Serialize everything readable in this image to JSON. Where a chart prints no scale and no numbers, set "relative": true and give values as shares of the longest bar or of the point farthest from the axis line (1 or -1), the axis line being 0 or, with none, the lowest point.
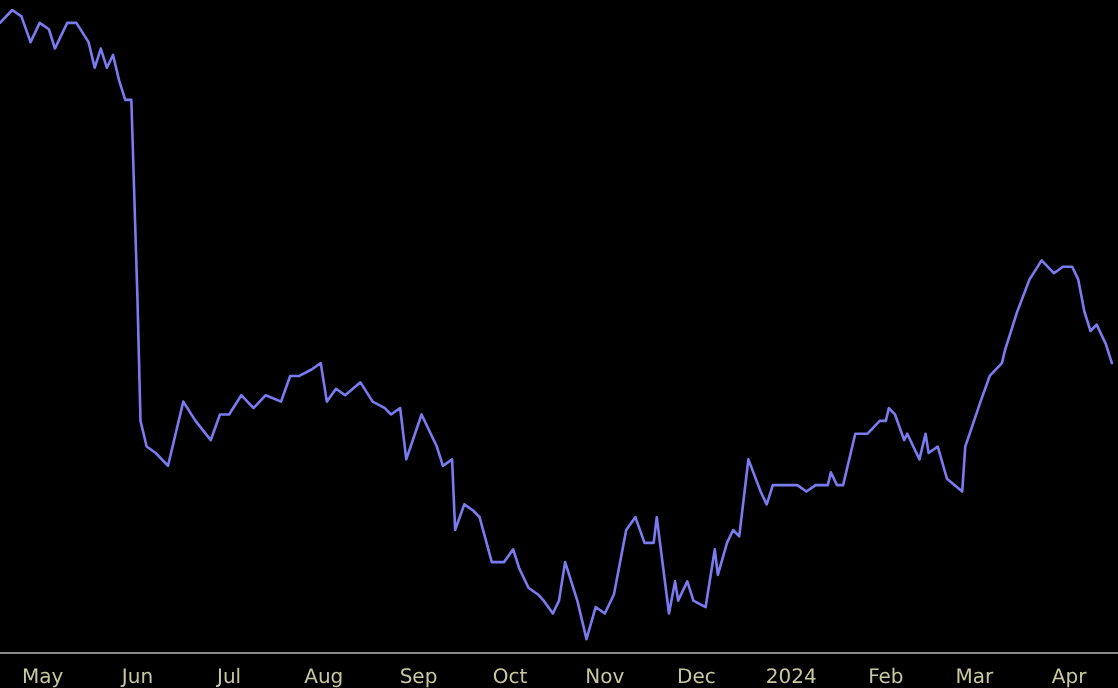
{
  "chart_data": {
    "type": "line",
    "relative": true,
    "grid": false,
    "marker": "none",
    "line_style": "solid",
    "xlim": [
      "2023-04-17",
      "2024-04-17"
    ],
    "xticks": [
      {
        "value": "2023-05-01",
        "label": "May"
      },
      {
        "value": "2023-06-01",
        "label": "Jun"
      },
      {
        "value": "2023-07-01",
        "label": "Jul"
      },
      {
        "value": "2023-08-01",
        "label": "Aug"
      },
      {
        "value": "2023-09-01",
        "label": "Sep"
      },
      {
        "value": "2023-10-01",
        "label": "Oct"
      },
      {
        "value": "2023-11-01",
        "label": "Nov"
      },
      {
        "value": "2023-12-01",
        "label": "Dec"
      },
      {
        "value": "2024-01-01",
        "label": "2024"
      },
      {
        "value": "2024-02-01",
        "label": "Feb"
      },
      {
        "value": "2024-03-01",
        "label": "Mar"
      },
      {
        "value": "2024-04-01",
        "label": "Apr"
      }
    ],
    "x": [
      "2023-04-17",
      "2023-04-21",
      "2023-04-24",
      "2023-04-27",
      "2023-04-30",
      "2023-05-03",
      "2023-05-05",
      "2023-05-09",
      "2023-05-12",
      "2023-05-16",
      "2023-05-18",
      "2023-05-20",
      "2023-05-22",
      "2023-05-24",
      "2023-05-26",
      "2023-05-28",
      "2023-05-30",
      "2023-06-01",
      "2023-06-02",
      "2023-06-04",
      "2023-06-07",
      "2023-06-11",
      "2023-06-14",
      "2023-06-16",
      "2023-06-20",
      "2023-06-25",
      "2023-06-28",
      "2023-07-01",
      "2023-07-05",
      "2023-07-09",
      "2023-07-13",
      "2023-07-18",
      "2023-07-21",
      "2023-07-24",
      "2023-07-28",
      "2023-07-31",
      "2023-08-02",
      "2023-08-05",
      "2023-08-08",
      "2023-08-13",
      "2023-08-17",
      "2023-08-21",
      "2023-08-23",
      "2023-08-26",
      "2023-08-28",
      "2023-09-02",
      "2023-09-07",
      "2023-09-09",
      "2023-09-12",
      "2023-09-13",
      "2023-09-16",
      "2023-09-19",
      "2023-09-21",
      "2023-09-25",
      "2023-09-29",
      "2023-10-02",
      "2023-10-04",
      "2023-10-07",
      "2023-10-10",
      "2023-10-12",
      "2023-10-15",
      "2023-10-17",
      "2023-10-19",
      "2023-10-23",
      "2023-10-26",
      "2023-10-29",
      "2023-11-01",
      "2023-11-04",
      "2023-11-08",
      "2023-11-11",
      "2023-11-14",
      "2023-11-17",
      "2023-11-18",
      "2023-11-22",
      "2023-11-24",
      "2023-11-25",
      "2023-11-28",
      "2023-11-30",
      "2023-12-04",
      "2023-12-07",
      "2023-12-08",
      "2023-12-11",
      "2023-12-13",
      "2023-12-15",
      "2023-12-18",
      "2023-12-22",
      "2023-12-24",
      "2023-12-26",
      "2023-12-30",
      "2024-01-03",
      "2024-01-06",
      "2024-01-09",
      "2024-01-13",
      "2024-01-14",
      "2024-01-16",
      "2024-01-18",
      "2024-01-22",
      "2024-01-26",
      "2024-01-30",
      "2024-02-01",
      "2024-02-02",
      "2024-02-04",
      "2024-02-07",
      "2024-02-08",
      "2024-02-12",
      "2024-02-14",
      "2024-02-15",
      "2024-02-18",
      "2024-02-21",
      "2024-02-26",
      "2024-02-27",
      "2024-03-03",
      "2024-03-06",
      "2024-03-10",
      "2024-03-11",
      "2024-03-15",
      "2024-03-19",
      "2024-03-23",
      "2024-03-27",
      "2024-03-30",
      "2024-04-02",
      "2024-04-04",
      "2024-04-06",
      "2024-04-08",
      "2024-04-10",
      "2024-04-13",
      "2024-04-15"
    ],
    "series": [
      {
        "color": "#7b7bf0",
        "values": [
          0.98,
          1.0,
          0.99,
          0.95,
          0.98,
          0.97,
          0.94,
          0.98,
          0.98,
          0.95,
          0.91,
          0.94,
          0.91,
          0.93,
          0.89,
          0.86,
          0.86,
          0.55,
          0.36,
          0.32,
          0.31,
          0.29,
          0.35,
          0.39,
          0.36,
          0.33,
          0.37,
          0.37,
          0.4,
          0.38,
          0.4,
          0.39,
          0.43,
          0.43,
          0.44,
          0.45,
          0.39,
          0.41,
          0.4,
          0.42,
          0.39,
          0.38,
          0.37,
          0.38,
          0.3,
          0.37,
          0.32,
          0.29,
          0.3,
          0.19,
          0.23,
          0.22,
          0.21,
          0.14,
          0.14,
          0.16,
          0.13,
          0.1,
          0.09,
          0.08,
          0.06,
          0.08,
          0.14,
          0.08,
          0.02,
          0.07,
          0.06,
          0.09,
          0.19,
          0.21,
          0.17,
          0.17,
          0.21,
          0.06,
          0.11,
          0.08,
          0.11,
          0.08,
          0.07,
          0.16,
          0.12,
          0.17,
          0.19,
          0.18,
          0.3,
          0.25,
          0.23,
          0.26,
          0.26,
          0.26,
          0.25,
          0.26,
          0.26,
          0.28,
          0.26,
          0.26,
          0.34,
          0.34,
          0.36,
          0.36,
          0.38,
          0.37,
          0.33,
          0.34,
          0.3,
          0.34,
          0.31,
          0.32,
          0.27,
          0.25,
          0.32,
          0.39,
          0.43,
          0.45,
          0.47,
          0.53,
          0.58,
          0.61,
          0.59,
          0.6,
          0.6,
          0.58,
          0.53,
          0.5,
          0.51,
          0.48,
          0.45
        ]
      }
    ]
  }
}
